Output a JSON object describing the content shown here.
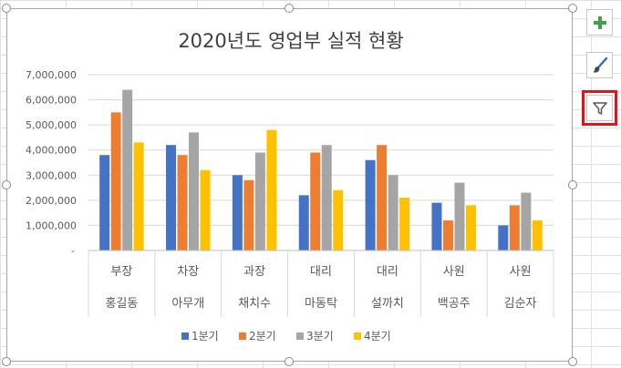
{
  "chart_data": {
    "type": "bar",
    "title": "2020년도 영업부 실적 현황",
    "categories": [
      [
        "부장",
        "홍길동"
      ],
      [
        "차장",
        "아무개"
      ],
      [
        "과장",
        "채치수"
      ],
      [
        "대리",
        "마동탁"
      ],
      [
        "대리",
        "설까치"
      ],
      [
        "사원",
        "백공주"
      ],
      [
        "사원",
        "김순자"
      ]
    ],
    "series": [
      {
        "name": "1분기",
        "color": "#4472c4",
        "values": [
          3800000,
          4200000,
          3000000,
          2200000,
          3600000,
          1900000,
          1000000
        ]
      },
      {
        "name": "2분기",
        "color": "#ed7d31",
        "values": [
          5500000,
          3800000,
          2800000,
          3900000,
          4200000,
          1200000,
          1800000
        ]
      },
      {
        "name": "3분기",
        "color": "#a5a5a5",
        "values": [
          6400000,
          4700000,
          3900000,
          4200000,
          3000000,
          2700000,
          2300000
        ]
      },
      {
        "name": "4분기",
        "color": "#ffc000",
        "values": [
          4300000,
          3200000,
          4800000,
          2400000,
          2100000,
          1800000,
          1200000
        ]
      }
    ],
    "ylim": [
      0,
      7000000
    ],
    "yticks": [
      "-",
      "1,000,000",
      "2,000,000",
      "3,000,000",
      "4,000,000",
      "5,000,000",
      "6,000,000",
      "7,000,000"
    ],
    "legend_position": "bottom",
    "grid": true
  },
  "side_buttons": {
    "add_element": "chart-elements-icon",
    "style": "chart-styles-icon",
    "filter": "chart-filters-icon"
  }
}
